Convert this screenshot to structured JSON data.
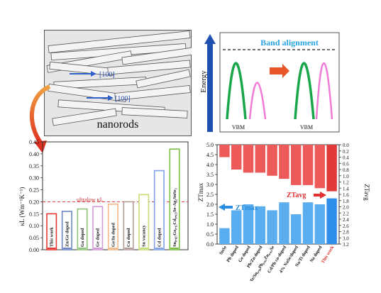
{
  "nanorods": {
    "label": "nanorods",
    "direction_labels": [
      "[100]",
      "[100]"
    ]
  },
  "band": {
    "title": "Band alignment",
    "axis_label": "Energy",
    "vbm_labels": [
      "VBM",
      "VBM"
    ],
    "colors": {
      "green": "#1aa64a",
      "pink": "#f07cd6",
      "title": "#29a3e0",
      "arrow": "#1e4fa8"
    }
  },
  "kappa_chart": {
    "ylabel": "κL (Wm⁻¹K⁻¹)",
    "annotation": "ultralow κL",
    "threshold": 0.2
  },
  "zt_chart": {
    "ylabel_left": "ZTmax",
    "ylabel_right": "ZTavg",
    "label_max": "ZTmax",
    "label_avg": "ZTavg",
    "highlight": "This work"
  },
  "chart_data": [
    {
      "type": "bar",
      "ylabel": "κL (Wm⁻¹K⁻¹)",
      "ylim": [
        0,
        0.45
      ],
      "yticks": [
        "0.00",
        "0.05",
        "0.10",
        "0.15",
        "0.20",
        "0.25",
        "0.30",
        "0.35",
        "0.40",
        "0.45"
      ],
      "categories": [
        "This work",
        "Zn/Ge doped",
        "Ga doped",
        "Ge doped",
        "Ge/In doped",
        "Cu doped",
        "Sn vacancy",
        "Cd doped",
        "Sn₀.₈₂₇Ge₀.₁₅Cd₀.₀₂₃Se-Ag₂SnSe₃"
      ],
      "values": [
        0.15,
        0.16,
        0.17,
        0.18,
        0.19,
        0.2,
        0.23,
        0.33,
        0.42
      ],
      "colors": [
        "#e53935",
        "#6d88c4",
        "#8fc47a",
        "#d39ad8",
        "#f2b98a",
        "#b59b96",
        "#c7dd7a",
        "#7fa3e6",
        "#7bbf45"
      ],
      "reference_line": 0.2
    },
    {
      "type": "bar",
      "ylabel": "ZTmax",
      "ylim": [
        0,
        5.0
      ],
      "yticks": [
        "0.0",
        "0.5",
        "1.0",
        "1.5",
        "2.0",
        "2.5",
        "3.0",
        "3.5",
        "4.0",
        "4.5",
        "5.0"
      ],
      "y2label": "ZTavg",
      "y2lim": [
        0,
        3.2
      ],
      "y2ticks": [
        "0.0",
        "0.2",
        "0.4",
        "0.6",
        "0.8",
        "1.0",
        "1.2",
        "1.4",
        "1.6",
        "1.8",
        "2.0",
        "2.2",
        "2.4",
        "2.6",
        "2.8",
        "3.0",
        "3.2"
      ],
      "categories": [
        "SnSe",
        "Pb doped",
        "Ge doped",
        "Pb/Zn doped",
        "8.5%SnTe/Sn₀.₉₆Pb₀.₀₁Zn₀.₀₃Se",
        "Cd/Pb co-doped",
        "4% NaSe/doped",
        "Na/Ti doped",
        "Na doped",
        "This work"
      ],
      "series": [
        {
          "name": "ZTmax",
          "values": [
            0.8,
            1.7,
            2.0,
            1.9,
            1.7,
            2.1,
            1.5,
            2.1,
            2.0,
            2.3
          ],
          "color": "#3a9be8"
        },
        {
          "name": "ZTavg",
          "values": [
            0.4,
            0.8,
            0.9,
            0.9,
            1.0,
            1.1,
            1.3,
            1.3,
            1.4,
            1.5
          ],
          "color": "#e85050"
        }
      ]
    }
  ]
}
